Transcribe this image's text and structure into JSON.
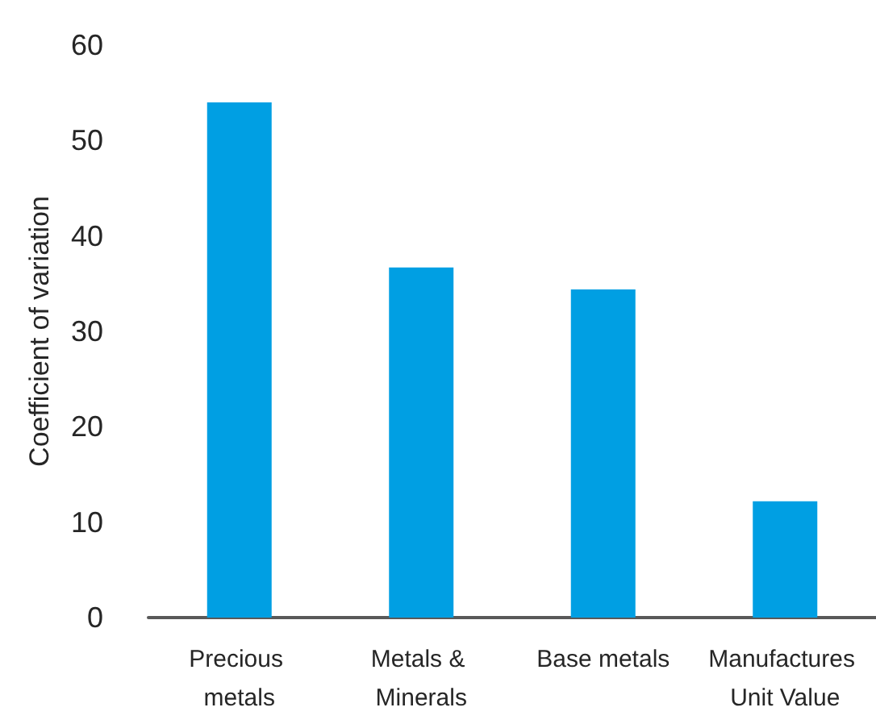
{
  "chart_data": {
    "type": "bar",
    "ylabel": "Coefficient of variation",
    "categories": [
      "Precious metals",
      "Metals & Minerals",
      "Base metals",
      "Manufactures Unit Value"
    ],
    "values": [
      54,
      36.7,
      34.4,
      12.2
    ],
    "color": "#009fe3",
    "ylim": [
      0,
      60
    ],
    "yticks": [
      0,
      10,
      20,
      30,
      40,
      50,
      60
    ]
  }
}
